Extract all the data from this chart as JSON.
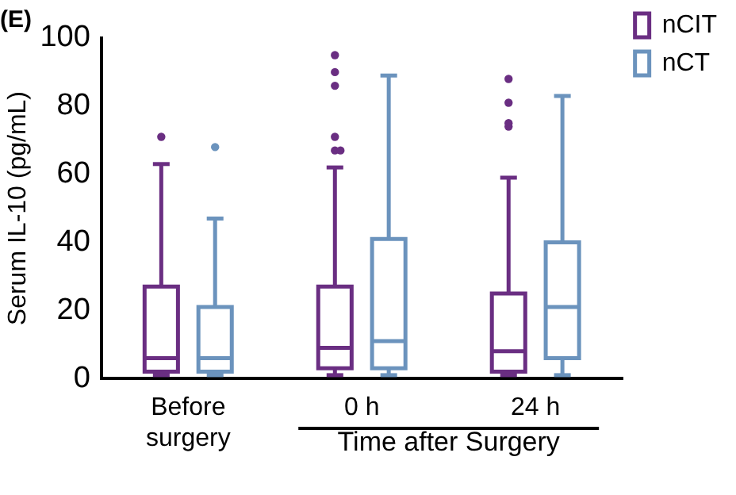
{
  "chart_data": {
    "type": "box",
    "title": "(E)",
    "ylabel": "Serum IL-10 (pg/mL)",
    "categories": [
      "Before surgery",
      "0 h",
      "24 h"
    ],
    "series": [
      {
        "name": "nCIT",
        "color": "#6a2e82",
        "boxes": [
          {
            "low": 1,
            "q1": 2,
            "median": 6,
            "q3": 27,
            "high": 63,
            "outliers": [
              71
            ]
          },
          {
            "low": 1,
            "q1": 3,
            "median": 9,
            "q3": 27,
            "high": 62,
            "outliers": [
              67,
              67,
              71,
              86,
              90,
              95
            ]
          },
          {
            "low": 1,
            "q1": 2,
            "median": 8,
            "q3": 25,
            "high": 59,
            "outliers": [
              74,
              75,
              81,
              88
            ]
          }
        ]
      },
      {
        "name": "nCT",
        "color": "#6b93bd",
        "boxes": [
          {
            "low": 1,
            "q1": 2,
            "median": 6,
            "q3": 21,
            "high": 47,
            "outliers": [
              68
            ]
          },
          {
            "low": 1,
            "q1": 3,
            "median": 11,
            "q3": 41,
            "high": 89
          },
          {
            "low": 1,
            "q1": 6,
            "median": 21,
            "q3": 40,
            "high": 83
          }
        ]
      }
    ],
    "ylim": [
      0,
      100
    ],
    "yticks": [
      0,
      20,
      40,
      60,
      80,
      100
    ],
    "grid": false,
    "legend": "top right",
    "marker": "circle",
    "annotations": [
      "Time after Surgery"
    ]
  }
}
